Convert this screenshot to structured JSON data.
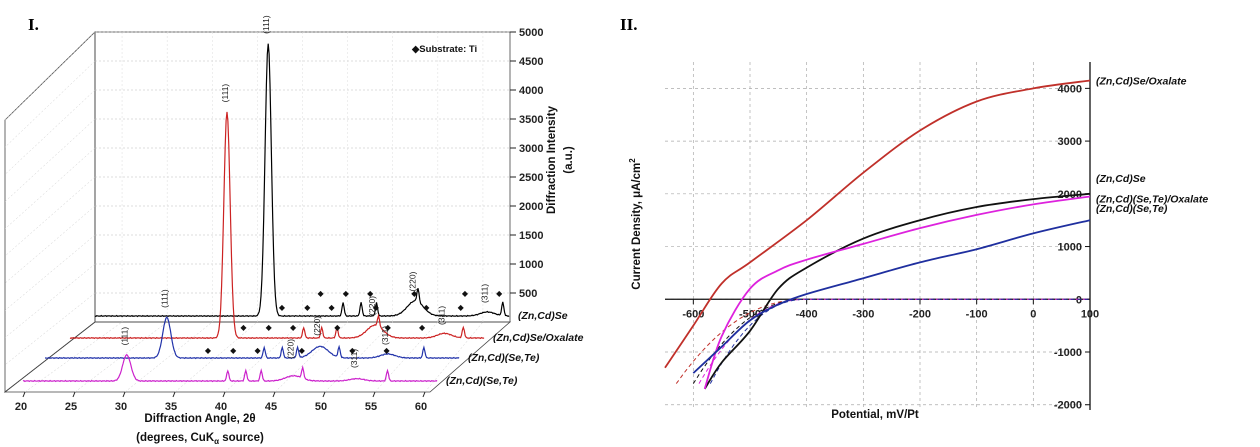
{
  "chart_data": [
    {
      "panel": "I.",
      "type": "line",
      "subtype": "3d-offset-xrd",
      "xlabel": "Diffraction Angle, 2θ",
      "xlabel_sub": "(degrees, CuK",
      "xlabel_sub_k": "α",
      "xlabel_sub_end": " source)",
      "ylabel_1": "Diffraction Intensity",
      "ylabel_2": "(a.u.)",
      "xticks": [
        20,
        25,
        30,
        35,
        40,
        45,
        50,
        55,
        60
      ],
      "yticks": [
        500,
        1000,
        1500,
        2000,
        2500,
        3000,
        3500,
        4000,
        4500,
        5000
      ],
      "ylim": [
        0,
        5000
      ],
      "annotation": "◆Substrate: Ti",
      "series": [
        {
          "name": "(Zn,Cd)Se",
          "color": "#000000",
          "peak_111": 4700,
          "peaks": [
            "(111)",
            "(220)",
            "(311)"
          ]
        },
        {
          "name": "(Zn,Cd)Se/Oxalate",
          "color": "#cc2222",
          "peak_111": 3900,
          "peaks": [
            "(111)",
            "(220)",
            "(311)"
          ]
        },
        {
          "name": "(Zn,Cd)(Se,Te)",
          "color": "#2233aa",
          "peak_111": 700,
          "peaks": [
            "(111)",
            "(220)",
            "(311)"
          ]
        },
        {
          "name": "(Zn,Cd)(Se,Te)",
          "color": "#cc22cc",
          "peak_111": 450,
          "peaks": [
            "(111)",
            "(220)",
            "(311)"
          ]
        }
      ]
    },
    {
      "panel": "II.",
      "type": "line",
      "xlabel": "Potential, mV/Pt",
      "ylabel": "Current Density, μA/cm",
      "ylabel_sup": "2",
      "xlim": [
        -650,
        100
      ],
      "ylim": [
        -2100,
        4500
      ],
      "xticks": [
        -600,
        -500,
        -400,
        -300,
        -200,
        -100,
        0,
        100
      ],
      "yticks": [
        -2000,
        -1000,
        0,
        1000,
        2000,
        3000,
        4000
      ],
      "series": [
        {
          "name": "(Zn,Cd)Se/Oxalate",
          "color": "#c0302a",
          "x": [
            -650,
            -600,
            -550,
            -500,
            -400,
            -300,
            -200,
            -100,
            0,
            100
          ],
          "y": [
            -1300,
            -500,
            300,
            700,
            1500,
            2400,
            3200,
            3750,
            4000,
            4150
          ]
        },
        {
          "name": "(Zn,Cd)Se",
          "color": "#111111",
          "x": [
            -580,
            -550,
            -500,
            -450,
            -400,
            -300,
            -200,
            -100,
            0,
            100
          ],
          "y": [
            -1700,
            -1200,
            -600,
            200,
            600,
            1150,
            1500,
            1750,
            1900,
            2000
          ]
        },
        {
          "name": "(Zn,Cd)(Se,Te)/Oxalate",
          "color": "#dd22dd",
          "x": [
            -580,
            -550,
            -500,
            -450,
            -400,
            -300,
            -200,
            -100,
            0,
            100
          ],
          "y": [
            -1700,
            -700,
            200,
            550,
            750,
            1050,
            1350,
            1600,
            1800,
            1950
          ]
        },
        {
          "name": "(Zn,Cd)(Se,Te)",
          "color": "#1f2f9f",
          "x": [
            -600,
            -550,
            -500,
            -450,
            -400,
            -300,
            -200,
            -100,
            0,
            100
          ],
          "y": [
            -1400,
            -900,
            -400,
            -100,
            100,
            400,
            700,
            950,
            1250,
            1500
          ]
        }
      ]
    }
  ]
}
